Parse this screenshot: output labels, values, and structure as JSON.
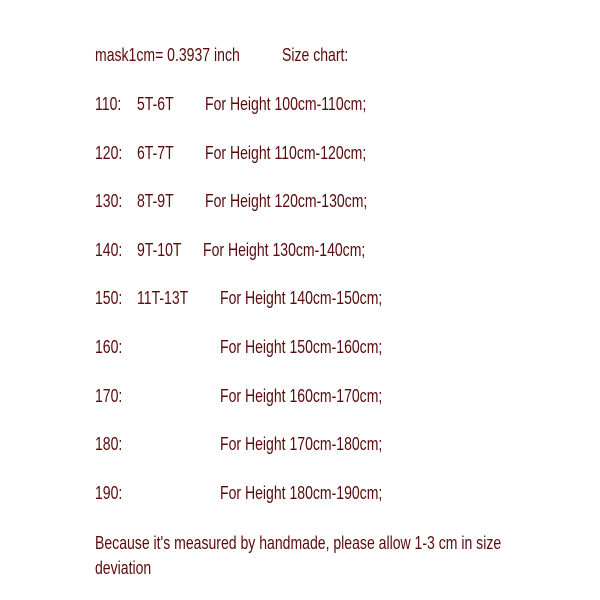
{
  "header": {
    "conversion": "mask1cm= 0.3937 inch",
    "title": "Size chart:"
  },
  "rows": [
    {
      "size": "110:",
      "age": "5T-6T",
      "height": "For Height 100cm-110cm;"
    },
    {
      "size": "120:",
      "age": "6T-7T",
      "height": "For Height 110cm-120cm;"
    },
    {
      "size": "130:",
      "age": "8T-9T",
      "height": "For Height 120cm-130cm;"
    },
    {
      "size": "140:",
      "age": "9T-10T",
      "height": "For Height 130cm-140cm;"
    },
    {
      "size": "150:",
      "age": "11T-13T",
      "height": "For Height 140cm-150cm;"
    },
    {
      "size": "160:",
      "age": "",
      "height": "For Height 150cm-160cm;"
    },
    {
      "size": "170:",
      "age": "",
      "height": "For Height 160cm-170cm;"
    },
    {
      "size": "180:",
      "age": "",
      "height": "For Height 170cm-180cm;"
    },
    {
      "size": "190:",
      "age": "",
      "height": "For Height 180cm-190cm;"
    }
  ],
  "note": {
    "line1": "Because it's measured by handmade, please allow 1-3 cm in size",
    "line2": "deviation"
  },
  "colors": {
    "text": "#5a0c0c"
  }
}
